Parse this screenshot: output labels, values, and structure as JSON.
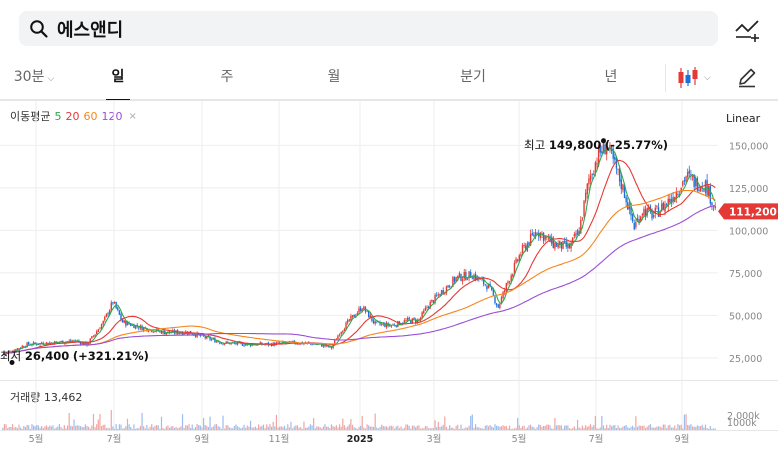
{
  "search": {
    "query": "에스앤디"
  },
  "tabs": [
    {
      "label": "30분",
      "has_dropdown": true
    },
    {
      "label": "일",
      "active": true
    },
    {
      "label": "주"
    },
    {
      "label": "월"
    },
    {
      "label": "분기"
    },
    {
      "label": "년"
    }
  ],
  "ma_legend": {
    "title": "이동평균",
    "periods": [
      {
        "label": "5",
        "color": "#2fa84f"
      },
      {
        "label": "20",
        "color": "#e53935"
      },
      {
        "label": "60",
        "color": "#f5871f"
      },
      {
        "label": "120",
        "color": "#9c4fd6"
      }
    ],
    "close_symbol": "×"
  },
  "scale": {
    "label": "Linear"
  },
  "price_axis": [
    "150,000",
    "125,000",
    "100,000",
    "75,000",
    "50,000",
    "25,000"
  ],
  "current_price": {
    "label": "111,200",
    "value": 111200,
    "color": "#e53935"
  },
  "annotations": {
    "high": {
      "prefix": "최고",
      "value": "149,800",
      "change": "(-25.77%)"
    },
    "low": {
      "prefix": "최저",
      "value": "26,400",
      "change": "(+321.21%)"
    }
  },
  "volume": {
    "label": "거래량",
    "value": "13,462",
    "axis": [
      "2,000k",
      "1000k"
    ]
  },
  "x_axis": [
    "5월",
    "7월",
    "9월",
    "11월",
    "2025",
    "3월",
    "5월",
    "7월",
    "9월"
  ],
  "colors": {
    "up": "#e53935",
    "down": "#1e6fd9",
    "grid": "#eeeeee",
    "text_muted": "#888888"
  },
  "chart_data": {
    "type": "candlestick",
    "y_range": [
      12000,
      162000
    ],
    "price_anchors": [
      [
        0,
        27000
      ],
      [
        15,
        33000
      ],
      [
        30,
        34000
      ],
      [
        45,
        35000
      ],
      [
        52,
        33000
      ],
      [
        56,
        38000
      ],
      [
        62,
        46000
      ],
      [
        68,
        58000
      ],
      [
        74,
        46000
      ],
      [
        85,
        43000
      ],
      [
        100,
        40000
      ],
      [
        115,
        40000
      ],
      [
        125,
        37000
      ],
      [
        135,
        34000
      ],
      [
        150,
        33000
      ],
      [
        165,
        33000
      ],
      [
        180,
        34000
      ],
      [
        195,
        33000
      ],
      [
        203,
        31000
      ],
      [
        208,
        40000
      ],
      [
        215,
        48000
      ],
      [
        222,
        55000
      ],
      [
        230,
        45000
      ],
      [
        240,
        44000
      ],
      [
        250,
        47000
      ],
      [
        257,
        47000
      ],
      [
        262,
        55000
      ],
      [
        270,
        63000
      ],
      [
        280,
        72000
      ],
      [
        290,
        74000
      ],
      [
        300,
        67000
      ],
      [
        306,
        55000
      ],
      [
        312,
        70000
      ],
      [
        320,
        87000
      ],
      [
        330,
        100000
      ],
      [
        340,
        92000
      ],
      [
        350,
        90000
      ],
      [
        356,
        100000
      ],
      [
        362,
        130000
      ],
      [
        368,
        145000
      ],
      [
        373,
        150000
      ],
      [
        378,
        138000
      ],
      [
        384,
        122000
      ],
      [
        390,
        102000
      ],
      [
        395,
        112000
      ],
      [
        402,
        109000
      ],
      [
        410,
        116000
      ],
      [
        417,
        124000
      ],
      [
        422,
        132000
      ],
      [
        428,
        128000
      ],
      [
        434,
        127000
      ],
      [
        440,
        113000
      ]
    ],
    "extremes": {
      "high": 149800,
      "low": 26400
    }
  }
}
